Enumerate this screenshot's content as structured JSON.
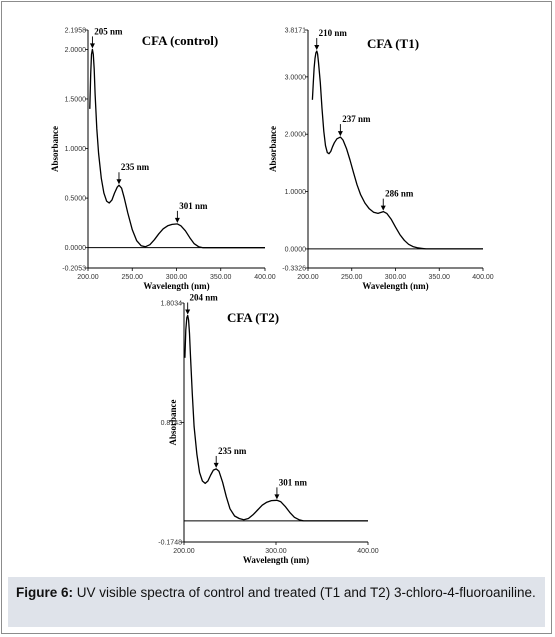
{
  "caption": {
    "label": "Figure 6:",
    "text": "UV visible spectra of control and treated (T1 and T2) 3-chloro-4-fluoroaniline."
  },
  "chart_data": [
    {
      "type": "line",
      "title": "CFA (control)",
      "xlabel": "Wavelength (nm)",
      "ylabel": "Absorbance",
      "xlim": [
        200,
        400
      ],
      "ylim": [
        -0.2053,
        2.1958
      ],
      "xticks": [
        "200.00",
        "250.00",
        "300.00",
        "350.00",
        "400.00"
      ],
      "yticks": [
        {
          "v": 2.1958,
          "t": "2.1958"
        },
        {
          "v": 2.0,
          "t": "2.0000"
        },
        {
          "v": 1.5,
          "t": "1.5000"
        },
        {
          "v": 1.0,
          "t": "1.0000"
        },
        {
          "v": 0.5,
          "t": "0.5000"
        },
        {
          "v": 0.0,
          "t": "0.0000"
        },
        {
          "v": -0.2053,
          "t": "-0.2053"
        }
      ],
      "baseline": 0,
      "peaks": [
        {
          "x": 205,
          "y": 2.0,
          "label": "205 nm"
        },
        {
          "x": 235,
          "y": 0.63,
          "label": "235 nm"
        },
        {
          "x": 301,
          "y": 0.24,
          "label": "301 nm"
        }
      ],
      "x": [
        202,
        203,
        204,
        205,
        206,
        207,
        208,
        210,
        212,
        215,
        218,
        221,
        224,
        227,
        230,
        233,
        235,
        238,
        241,
        245,
        250,
        255,
        260,
        265,
        270,
        275,
        280,
        285,
        290,
        295,
        301,
        305,
        310,
        315,
        320,
        325,
        330,
        335,
        340,
        400
      ],
      "y": [
        1.4,
        1.75,
        1.95,
        2.0,
        1.95,
        1.8,
        1.55,
        1.2,
        0.95,
        0.7,
        0.55,
        0.47,
        0.45,
        0.48,
        0.55,
        0.61,
        0.63,
        0.6,
        0.5,
        0.35,
        0.18,
        0.07,
        0.02,
        0.01,
        0.03,
        0.08,
        0.14,
        0.19,
        0.22,
        0.235,
        0.24,
        0.22,
        0.17,
        0.1,
        0.04,
        0.01,
        0.0,
        0.0,
        0.0,
        0.0
      ]
    },
    {
      "type": "line",
      "title": "CFA (T1)",
      "xlabel": "Wavelength (nm)",
      "ylabel": "Absorbance",
      "xlim": [
        200,
        400
      ],
      "ylim": [
        -0.3326,
        3.8171
      ],
      "xticks": [
        "200.00",
        "250.00",
        "300.00",
        "350.00",
        "400.00"
      ],
      "yticks": [
        {
          "v": 3.8171,
          "t": "3.8171"
        },
        {
          "v": 3.0,
          "t": "3.0000"
        },
        {
          "v": 2.0,
          "t": "2.0000"
        },
        {
          "v": 1.0,
          "t": "1.0000"
        },
        {
          "v": 0.0,
          "t": "0.0000"
        },
        {
          "v": -0.3326,
          "t": "-0.3326"
        }
      ],
      "baseline": 0,
      "peaks": [
        {
          "x": 210,
          "y": 3.45,
          "label": "210 nm"
        },
        {
          "x": 237,
          "y": 1.95,
          "label": "237 nm"
        },
        {
          "x": 286,
          "y": 0.65,
          "label": "286 nm"
        }
      ],
      "x": [
        205,
        206,
        207,
        208,
        209,
        210,
        211,
        212,
        214,
        216,
        218,
        220,
        222,
        224,
        226,
        228,
        230,
        233,
        237,
        240,
        244,
        248,
        252,
        256,
        260,
        265,
        270,
        275,
        280,
        286,
        290,
        295,
        300,
        305,
        310,
        315,
        320,
        325,
        330,
        335,
        340,
        345,
        350,
        400
      ],
      "y": [
        2.6,
        2.9,
        3.15,
        3.32,
        3.42,
        3.45,
        3.4,
        3.25,
        2.9,
        2.45,
        2.05,
        1.8,
        1.68,
        1.66,
        1.7,
        1.78,
        1.85,
        1.92,
        1.95,
        1.9,
        1.75,
        1.55,
        1.33,
        1.12,
        0.95,
        0.8,
        0.7,
        0.64,
        0.62,
        0.65,
        0.62,
        0.52,
        0.38,
        0.25,
        0.15,
        0.08,
        0.04,
        0.02,
        0.01,
        0.0,
        0.0,
        0.0,
        0.0,
        0.0
      ]
    },
    {
      "type": "line",
      "title": "CFA (T2)",
      "xlabel": "Wavelength (nm)",
      "ylabel": "Absorbance",
      "xlim": [
        200,
        400
      ],
      "ylim": [
        -0.1748,
        1.8034
      ],
      "xticks": [
        "200.00",
        "300.00",
        "400.00"
      ],
      "yticks": [
        {
          "v": 1.8034,
          "t": "1.8034"
        },
        {
          "v": 0.8143,
          "t": "0.8143"
        },
        {
          "v": -0.1748,
          "t": "-0.1748"
        }
      ],
      "baseline": 0,
      "peaks": [
        {
          "x": 204,
          "y": 1.7,
          "label": "204 nm"
        },
        {
          "x": 235,
          "y": 0.43,
          "label": "235 nm"
        },
        {
          "x": 301,
          "y": 0.17,
          "label": "301 nm"
        }
      ],
      "x": [
        201,
        202,
        203,
        204,
        205,
        206,
        207,
        209,
        211,
        214,
        217,
        220,
        223,
        226,
        229,
        232,
        235,
        238,
        242,
        246,
        250,
        255,
        260,
        265,
        270,
        275,
        280,
        285,
        290,
        295,
        301,
        305,
        310,
        315,
        320,
        325,
        330,
        400
      ],
      "y": [
        1.35,
        1.58,
        1.68,
        1.7,
        1.66,
        1.55,
        1.38,
        1.05,
        0.78,
        0.55,
        0.4,
        0.33,
        0.31,
        0.33,
        0.38,
        0.42,
        0.43,
        0.41,
        0.32,
        0.2,
        0.1,
        0.04,
        0.02,
        0.01,
        0.02,
        0.05,
        0.09,
        0.13,
        0.155,
        0.168,
        0.17,
        0.16,
        0.12,
        0.07,
        0.03,
        0.01,
        0.0,
        0.0
      ]
    }
  ]
}
